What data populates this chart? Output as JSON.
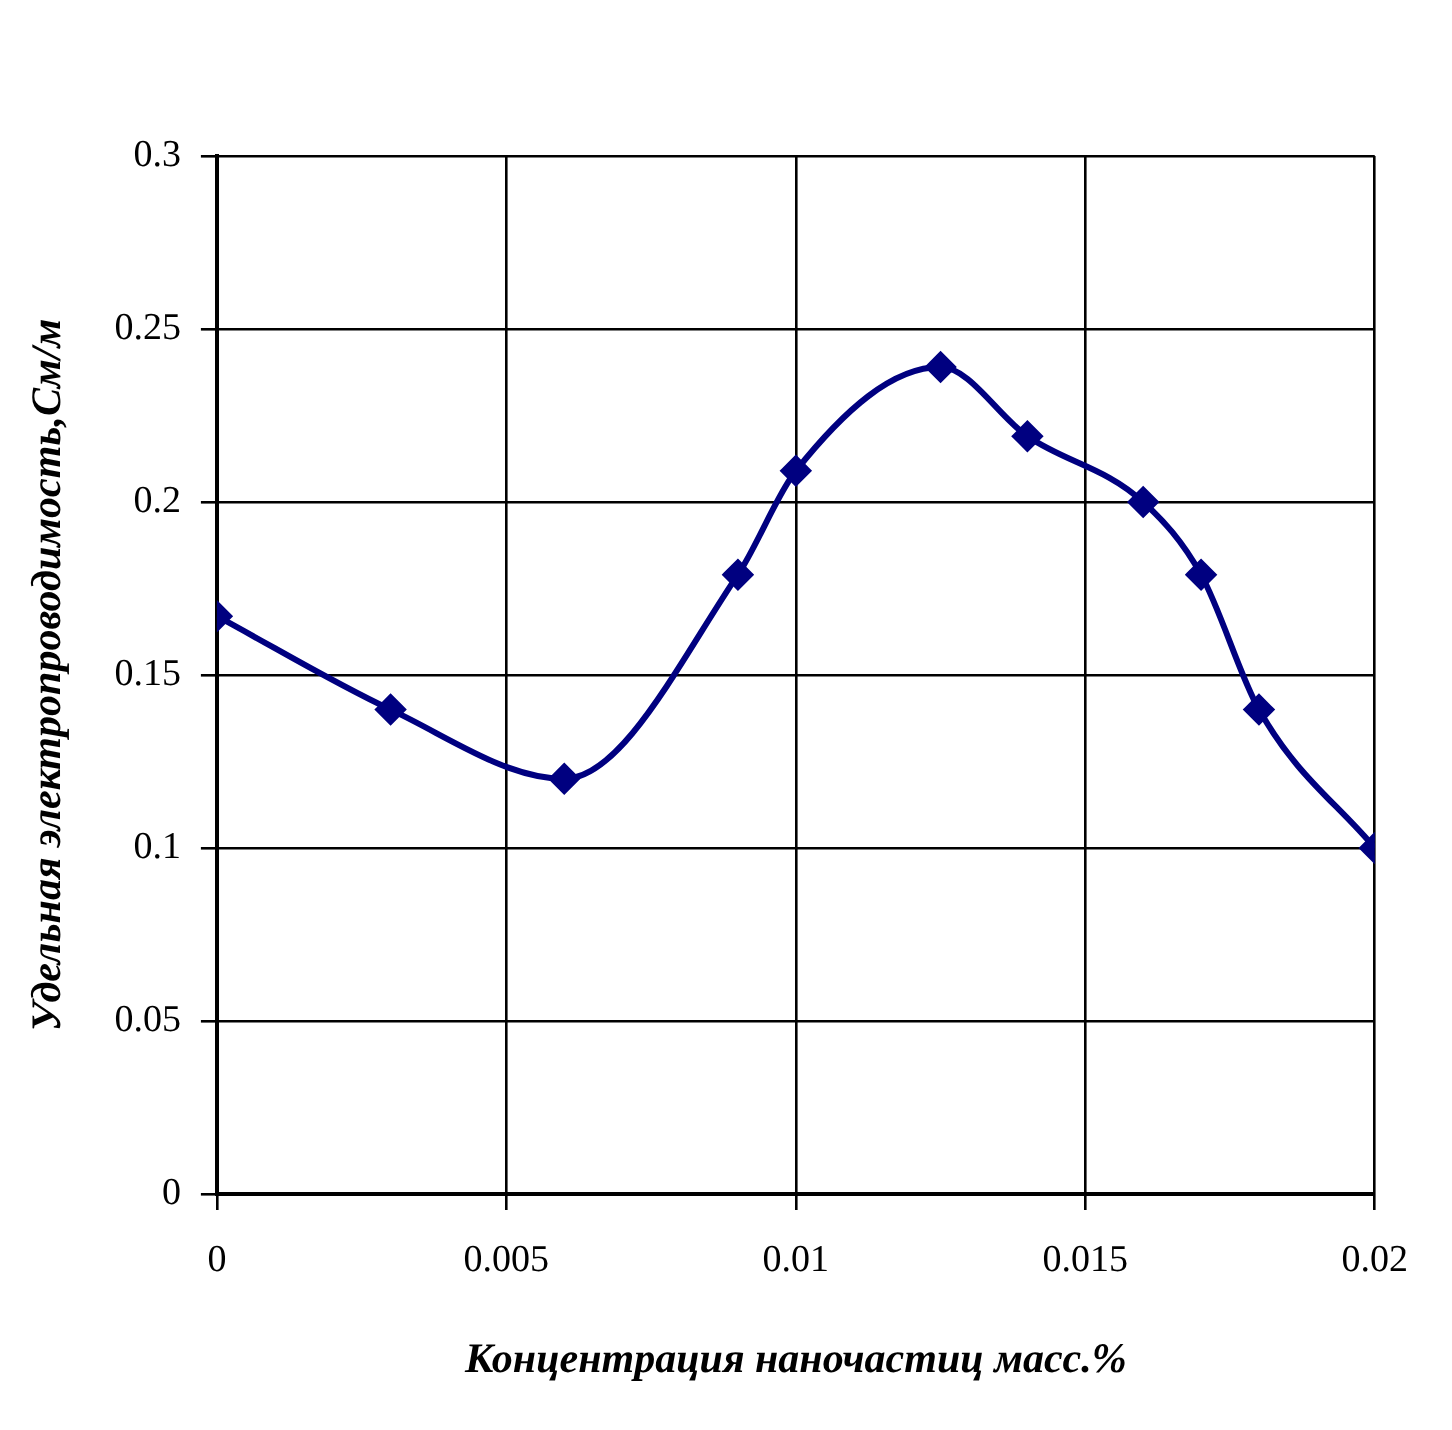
{
  "chart_data": {
    "type": "line",
    "xlabel": "Концентрация наночастиц масс.%",
    "ylabel": "Удельная электропроводимость,См/м",
    "x": [
      0,
      0.003,
      0.006,
      0.009,
      0.01,
      0.0125,
      0.014,
      0.016,
      0.017,
      0.018,
      0.02
    ],
    "series": [
      {
        "color": "#000080",
        "values": [
          0.167,
          0.14,
          0.12,
          0.179,
          0.209,
          0.239,
          0.219,
          0.2,
          0.179,
          0.14,
          0.1
        ]
      }
    ],
    "xlim": [
      0,
      0.02
    ],
    "xticks": [
      0,
      0.005,
      0.01,
      0.015,
      0.02
    ],
    "ylim": [
      0,
      0.3
    ],
    "yticks": [
      0,
      0.05,
      0.1,
      0.15,
      0.2,
      0.25,
      0.3
    ],
    "grid": true,
    "legend": false,
    "marker": "diamond",
    "line_style": "solid"
  }
}
